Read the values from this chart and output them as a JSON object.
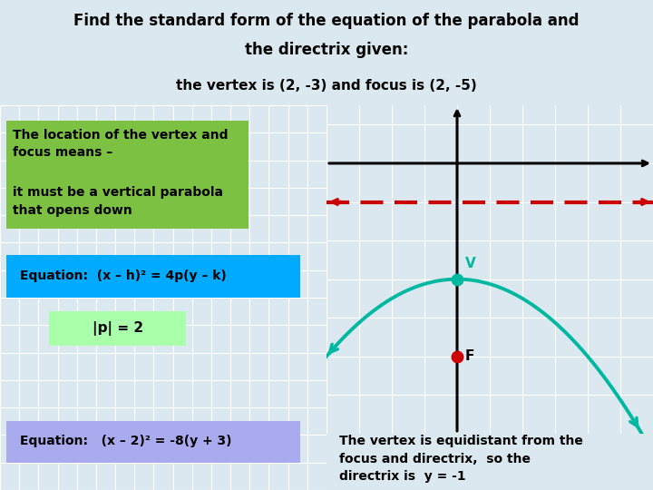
{
  "title_line1": "Find the standard form of the equation of the parabola and",
  "title_line2": "the directrix given:",
  "subtitle": "the vertex is (2, -3) and focus is (2, -5)",
  "title_bg": "#b2e8ec",
  "grid_bg": "#dce8f0",
  "green_box_bg": "#7dc142",
  "green_box_text1": "The location of the vertex and\nfocus means –",
  "green_box_text2": "it must be a vertical parabola\nthat opens down",
  "cyan_box_bg": "#00aaff",
  "cyan_box_text": "Equation:  (x – h)² = 4p(y – k)",
  "p_box_bg": "#aaffaa",
  "p_box_text": "|p| = 2",
  "eq2_box_bg": "#aaaaee",
  "eq2_box_text": "Equation:   (x – 2)² = -8(y + 3)",
  "gold_box_bg": "#ffcc00",
  "gold_box_text": "The vertex is equidistant from the\nfocus and directrix,  so the\ndirectrix is  y = -1",
  "parabola_color": "#00b8a0",
  "vertex_color": "#00b8a0",
  "focus_color": "#cc0000",
  "directrix_color": "#cc0000"
}
